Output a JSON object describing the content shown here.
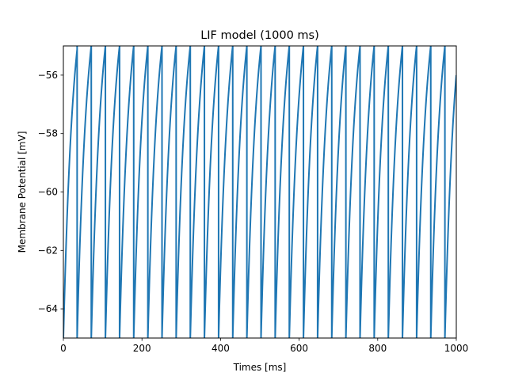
{
  "chart_data": {
    "type": "line",
    "title": "LIF model (1000 ms)",
    "xlabel": "Times [ms]",
    "ylabel": "Membrane Potential [mV]",
    "xlim": [
      0,
      1000
    ],
    "ylim": [
      -65,
      -55
    ],
    "xticks": [
      0,
      200,
      400,
      600,
      800,
      1000
    ],
    "yticks": [
      -64,
      -62,
      -60,
      -58,
      -56
    ],
    "xtick_labels": [
      "0",
      "200",
      "400",
      "600",
      "800",
      "1000"
    ],
    "ytick_labels": [
      "−64",
      "−62",
      "−60",
      "−58",
      "−56"
    ],
    "grid": false,
    "line_color": "#1f77b4",
    "series": [
      {
        "v_rest": -65,
        "v_threshold": -55,
        "spike_times": [
          35,
          71,
          107,
          143,
          179,
          215,
          251,
          287,
          323,
          359,
          395,
          431,
          467,
          503,
          539,
          575,
          611,
          647,
          683,
          719,
          755,
          791,
          827,
          863,
          899,
          935,
          971
        ],
        "values_at_end": -56
      }
    ]
  }
}
